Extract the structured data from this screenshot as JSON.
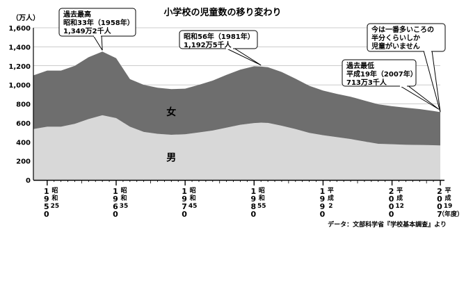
{
  "chart_data": {
    "type": "area",
    "stacked": true,
    "title": "小学校の児童数の移り変わり",
    "y_unit": "（万人）",
    "ylim": [
      0,
      1600
    ],
    "y_ticks": [
      "0",
      "200",
      "400",
      "600",
      "800",
      "1,000",
      "1,200",
      "1,400",
      "1,600"
    ],
    "grid": true,
    "x": [
      1948,
      1950,
      1952,
      1954,
      1956,
      1958,
      1960,
      1962,
      1964,
      1966,
      1968,
      1970,
      1972,
      1974,
      1976,
      1978,
      1980,
      1981,
      1982,
      1984,
      1986,
      1988,
      1990,
      1992,
      1994,
      1996,
      1998,
      2000,
      2002,
      2004,
      2006,
      2007
    ],
    "series": [
      {
        "name": "男",
        "color": "#d8d8d8",
        "values": [
          535,
          560,
          560,
          590,
          640,
          680,
          650,
          560,
          505,
          485,
          475,
          480,
          500,
          520,
          550,
          580,
          598,
          603,
          600,
          570,
          535,
          495,
          470,
          450,
          430,
          405,
          380,
          375,
          370,
          368,
          365,
          363
        ]
      },
      {
        "name": "女",
        "color": "#6e6e6e",
        "values": [
          565,
          590,
          590,
          610,
          650,
          670,
          630,
          500,
          495,
          485,
          480,
          480,
          500,
          525,
          555,
          580,
          597,
          590,
          585,
          565,
          530,
          495,
          470,
          455,
          445,
          430,
          415,
          400,
          390,
          377,
          360,
          350
        ]
      }
    ],
    "x_axis_labels": [
      {
        "year": 1950,
        "digits": [
          "1",
          "9",
          "5",
          "0"
        ],
        "era": [
          "昭",
          "和",
          "25"
        ]
      },
      {
        "year": 1960,
        "digits": [
          "1",
          "9",
          "6",
          "0"
        ],
        "era": [
          "昭",
          "和",
          "35"
        ]
      },
      {
        "year": 1970,
        "digits": [
          "1",
          "9",
          "7",
          "0"
        ],
        "era": [
          "昭",
          "和",
          "45"
        ]
      },
      {
        "year": 1980,
        "digits": [
          "1",
          "9",
          "8",
          "0"
        ],
        "era": [
          "昭",
          "和",
          "55"
        ]
      },
      {
        "year": 1990,
        "digits": [
          "1",
          "9",
          "9",
          "0"
        ],
        "era": [
          "平",
          "成",
          "2"
        ]
      },
      {
        "year": 2000,
        "digits": [
          "2",
          "0",
          "0",
          "0"
        ],
        "era": [
          "平",
          "成",
          "12"
        ]
      },
      {
        "year": 2007,
        "digits": [
          "2",
          "0",
          "0",
          "7"
        ],
        "era": [
          "平",
          "成",
          "19"
        ]
      }
    ],
    "x_unit": "（年度）",
    "annotations": [
      {
        "key": "peak",
        "lines": [
          "過去最高",
          "昭和33年（1958年）",
          "1,349万2千人"
        ],
        "year": 1958,
        "total": 1349.2
      },
      {
        "key": "peak2",
        "lines": [
          "昭和56年（1981年）",
          "1,192万5千人"
        ],
        "year": 1981,
        "total": 1192.5
      },
      {
        "key": "low",
        "lines": [
          "過去最低",
          "平成19年（2007年）",
          "713万3千人"
        ],
        "year": 2007,
        "total": 713.3
      },
      {
        "key": "now",
        "lines": [
          "今は一番多いころの",
          "半分くらいしか",
          "児童がいません"
        ],
        "year": 2007,
        "total": 713.3
      }
    ],
    "source": "データ：文部科学省『学校基本調査』より"
  }
}
